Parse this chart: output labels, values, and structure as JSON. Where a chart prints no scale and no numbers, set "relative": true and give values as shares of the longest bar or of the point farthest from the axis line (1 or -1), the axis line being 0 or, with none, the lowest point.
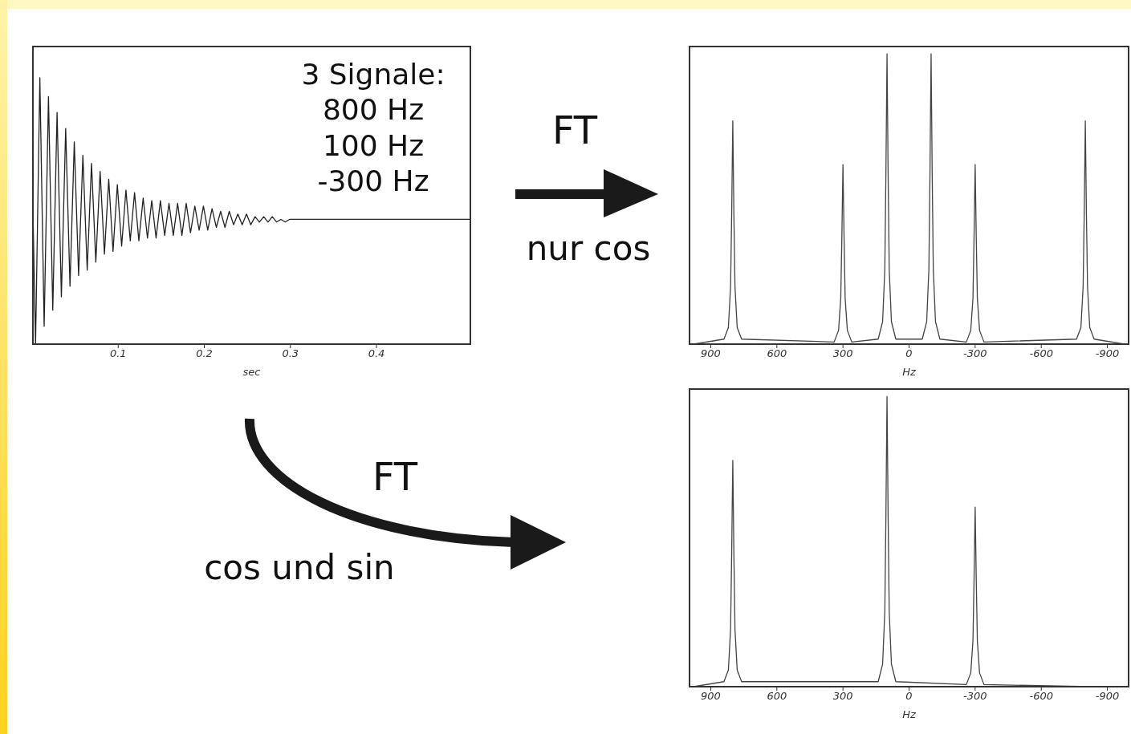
{
  "chart_data": [
    {
      "type": "line",
      "relative": true,
      "xlabel": "sec",
      "color": "#222222",
      "xlim": [
        0,
        0.51
      ],
      "xticks": [
        0.1,
        0.2,
        0.3,
        0.4
      ],
      "annotations": [
        "3 Signale:",
        "800 Hz",
        "100 Hz",
        "-300 Hz"
      ],
      "x": [
        0,
        0.004,
        0.009,
        0.014,
        0.019,
        0.024,
        0.029,
        0.034,
        0.039,
        0.044,
        0.049,
        0.054,
        0.059,
        0.064,
        0.069,
        0.074,
        0.079,
        0.084,
        0.089,
        0.094,
        0.099,
        0.104,
        0.109,
        0.114,
        0.119,
        0.124,
        0.129,
        0.134,
        0.139,
        0.144,
        0.149,
        0.154,
        0.159,
        0.164,
        0.169,
        0.174,
        0.179,
        0.184,
        0.189,
        0.194,
        0.199,
        0.204,
        0.209,
        0.214,
        0.219,
        0.224,
        0.229,
        0.234,
        0.239,
        0.244,
        0.249,
        0.254,
        0.259,
        0.264,
        0.269,
        0.274,
        0.279,
        0.284,
        0.289,
        0.294,
        0.299,
        0.31,
        0.4,
        0.51
      ],
      "values": [
        0.67,
        0,
        1,
        0.07,
        0.93,
        0.13,
        0.87,
        0.18,
        0.81,
        0.22,
        0.76,
        0.26,
        0.71,
        0.28,
        0.68,
        0.31,
        0.65,
        0.34,
        0.62,
        0.35,
        0.6,
        0.37,
        0.58,
        0.39,
        0.57,
        0.39,
        0.55,
        0.4,
        0.54,
        0.4,
        0.54,
        0.41,
        0.53,
        0.41,
        0.53,
        0.41,
        0.53,
        0.42,
        0.52,
        0.43,
        0.52,
        0.43,
        0.51,
        0.44,
        0.5,
        0.44,
        0.5,
        0.45,
        0.49,
        0.45,
        0.49,
        0.45,
        0.48,
        0.46,
        0.48,
        0.46,
        0.48,
        0.46,
        0.47,
        0.46,
        0.47,
        0.47,
        0.47,
        0.47
      ]
    },
    {
      "type": "line",
      "relative": true,
      "xlabel": "Hz",
      "color": "#444444",
      "xlim": [
        1000,
        -1000
      ],
      "xticks": [
        900,
        600,
        300,
        0,
        -300,
        -600,
        -900
      ],
      "annotations": [
        "FT",
        "nur cos"
      ],
      "x": [
        1000,
        840,
        820,
        810,
        805,
        800,
        795,
        790,
        780,
        760,
        340,
        320,
        310,
        305,
        300,
        295,
        290,
        280,
        260,
        140,
        120,
        110,
        105,
        100,
        95,
        90,
        80,
        60,
        -60,
        -80,
        -90,
        -95,
        -100,
        -105,
        -110,
        -120,
        -140,
        -260,
        -280,
        -290,
        -295,
        -300,
        -305,
        -310,
        -320,
        -340,
        -760,
        -780,
        -790,
        -795,
        -800,
        -805,
        -810,
        -820,
        -840,
        -1000
      ],
      "values": [
        0,
        0.02,
        0.06,
        0.2,
        0.45,
        0.77,
        0.45,
        0.2,
        0.06,
        0.02,
        0.01,
        0.05,
        0.16,
        0.37,
        0.62,
        0.37,
        0.16,
        0.05,
        0.01,
        0.02,
        0.08,
        0.26,
        0.59,
        1,
        0.59,
        0.26,
        0.08,
        0.02,
        0.02,
        0.08,
        0.26,
        0.59,
        1,
        0.59,
        0.26,
        0.08,
        0.02,
        0.01,
        0.05,
        0.16,
        0.37,
        0.62,
        0.37,
        0.16,
        0.05,
        0.01,
        0.02,
        0.06,
        0.2,
        0.45,
        0.77,
        0.45,
        0.2,
        0.06,
        0.02,
        0
      ]
    },
    {
      "type": "line",
      "relative": true,
      "xlabel": "Hz",
      "color": "#444444",
      "xlim": [
        1000,
        -1000
      ],
      "xticks": [
        900,
        600,
        300,
        0,
        -300,
        -600,
        -900
      ],
      "annotations": [
        "FT",
        "cos und sin"
      ],
      "x": [
        1000,
        840,
        820,
        810,
        805,
        800,
        795,
        790,
        780,
        760,
        140,
        120,
        110,
        105,
        100,
        95,
        90,
        80,
        60,
        -260,
        -280,
        -290,
        -295,
        -300,
        -305,
        -310,
        -320,
        -340,
        -1000
      ],
      "values": [
        0,
        0.02,
        0.06,
        0.2,
        0.46,
        0.78,
        0.46,
        0.2,
        0.06,
        0.02,
        0.02,
        0.08,
        0.26,
        0.59,
        1,
        0.59,
        0.26,
        0.08,
        0.02,
        0.01,
        0.05,
        0.16,
        0.37,
        0.62,
        0.37,
        0.16,
        0.05,
        0.01,
        0
      ]
    }
  ]
}
